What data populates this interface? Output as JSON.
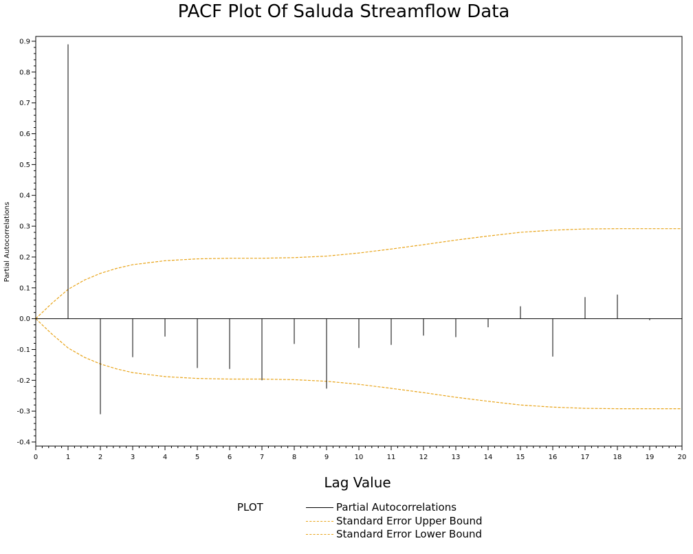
{
  "chart_data": {
    "type": "bar",
    "title": "PACF Plot Of Saluda Streamflow Data",
    "xlabel": "Lag Value",
    "ylabel": "Partial Autocorrelations",
    "xlim": [
      0,
      20
    ],
    "ylim": [
      -0.4,
      0.9
    ],
    "x_ticks": [
      0,
      1,
      2,
      3,
      4,
      5,
      6,
      7,
      8,
      9,
      10,
      11,
      12,
      13,
      14,
      15,
      16,
      17,
      18,
      19,
      20
    ],
    "y_ticks": [
      -0.4,
      -0.3,
      -0.2,
      -0.1,
      0.0,
      0.1,
      0.2,
      0.3,
      0.4,
      0.5,
      0.6,
      0.7,
      0.8,
      0.9
    ],
    "y_tick_labels": [
      "-0.4",
      "-0.3",
      "-0.2",
      "-0.1",
      "0.0",
      "0.1",
      "0.2",
      "0.3",
      "0.4",
      "0.5",
      "0.6",
      "0.7",
      "0.8",
      "0.9"
    ],
    "grid": false,
    "legend_title": "PLOT",
    "legend_position": "bottom",
    "series": [
      {
        "name": "Partial Autocorrelations",
        "style": "needle",
        "color": "#000000",
        "x": [
          1,
          2,
          3,
          4,
          5,
          6,
          7,
          8,
          9,
          10,
          11,
          12,
          13,
          14,
          15,
          16,
          17,
          18,
          19,
          20
        ],
        "values": [
          0.89,
          -0.31,
          -0.125,
          -0.058,
          -0.16,
          -0.163,
          -0.2,
          -0.082,
          -0.227,
          -0.095,
          -0.085,
          -0.055,
          -0.06,
          -0.028,
          0.04,
          -0.123,
          0.07,
          0.078,
          -0.005,
          0.028
        ]
      },
      {
        "name": "Standard Error Upper Bound",
        "style": "dashed",
        "color": "#E8A317",
        "x": [
          0,
          0.5,
          1,
          1.5,
          2,
          2.5,
          3,
          4,
          5,
          6,
          7,
          8,
          9,
          10,
          11,
          12,
          13,
          14,
          15,
          16,
          17,
          18,
          19,
          20
        ],
        "values": [
          0,
          0.05,
          0.095,
          0.125,
          0.147,
          0.163,
          0.175,
          0.188,
          0.194,
          0.196,
          0.196,
          0.198,
          0.203,
          0.213,
          0.226,
          0.24,
          0.255,
          0.268,
          0.28,
          0.287,
          0.291,
          0.292,
          0.292,
          0.292
        ]
      },
      {
        "name": "Standard Error Lower Bound",
        "style": "dashed",
        "color": "#E8A317",
        "x": [
          0,
          0.5,
          1,
          1.5,
          2,
          2.5,
          3,
          4,
          5,
          6,
          7,
          8,
          9,
          10,
          11,
          12,
          13,
          14,
          15,
          16,
          17,
          18,
          19,
          20
        ],
        "values": [
          0,
          -0.05,
          -0.095,
          -0.125,
          -0.147,
          -0.163,
          -0.175,
          -0.188,
          -0.194,
          -0.196,
          -0.196,
          -0.198,
          -0.203,
          -0.213,
          -0.226,
          -0.24,
          -0.255,
          -0.268,
          -0.28,
          -0.287,
          -0.291,
          -0.292,
          -0.292,
          -0.292
        ]
      }
    ]
  }
}
